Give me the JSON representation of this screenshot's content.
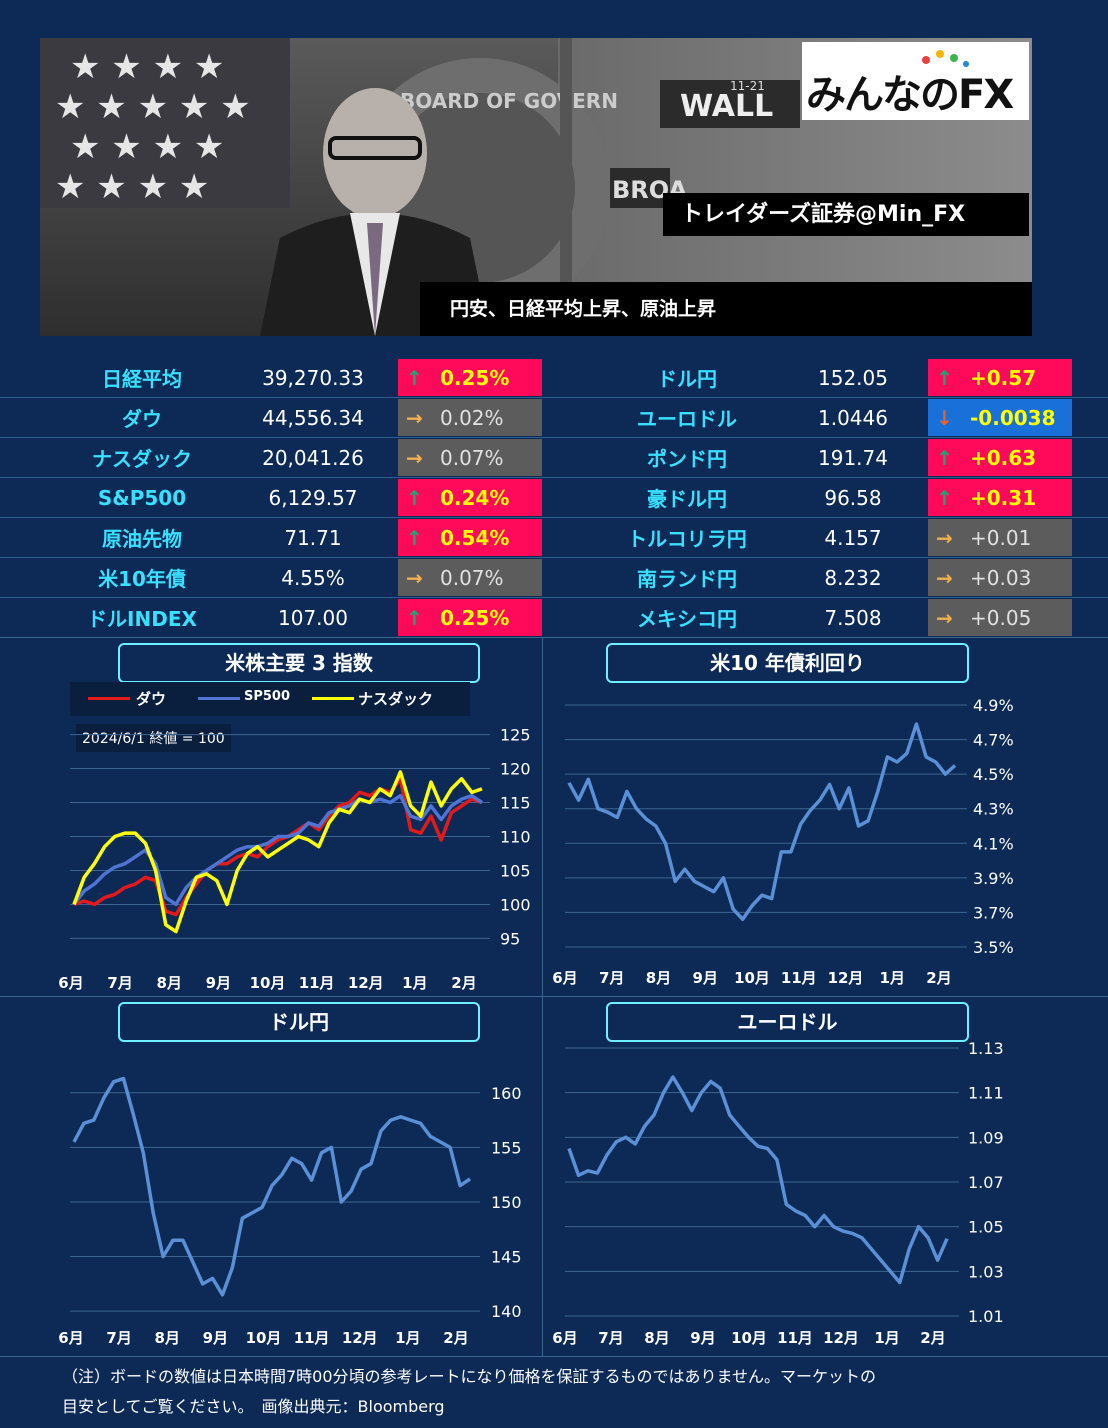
{
  "header": {
    "logo_text": "みんなのFX",
    "account_label": "トレイダーズ証券@Min_FX",
    "headline": "円安、日経平均上昇、原油上昇",
    "photo_sign1": "WALL",
    "photo_sign2": "BROA",
    "photo_sign_small": "11-21",
    "photo_seal_text": "BOARD OF GOVERN"
  },
  "board": {
    "left": [
      {
        "name": "日経平均",
        "value": "39,270.33",
        "change": "0.25%",
        "dir": "up"
      },
      {
        "name": "ダウ",
        "value": "44,556.34",
        "change": "0.02%",
        "dir": "flat"
      },
      {
        "name": "ナスダック",
        "value": "20,041.26",
        "change": "0.07%",
        "dir": "flat"
      },
      {
        "name": "S&P500",
        "value": "6,129.57",
        "change": "0.24%",
        "dir": "up"
      },
      {
        "name": "原油先物",
        "value": "71.71",
        "change": "0.54%",
        "dir": "up"
      },
      {
        "name": "米10年債",
        "value": "4.55%",
        "change": "0.07%",
        "dir": "flat"
      },
      {
        "name": "ドルINDEX",
        "value": "107.00",
        "change": "0.25%",
        "dir": "up"
      }
    ],
    "right": [
      {
        "name": "ドル円",
        "value": "152.05",
        "change": "+0.57",
        "dir": "up"
      },
      {
        "name": "ユーロドル",
        "value": "1.0446",
        "change": "-0.0038",
        "dir": "down"
      },
      {
        "name": "ポンド円",
        "value": "191.74",
        "change": "+0.63",
        "dir": "up"
      },
      {
        "name": "豪ドル円",
        "value": "96.58",
        "change": "+0.31",
        "dir": "up"
      },
      {
        "name": "トルコリラ円",
        "value": "4.157",
        "change": "+0.01",
        "dir": "flat"
      },
      {
        "name": "南ランド円",
        "value": "8.232",
        "change": "+0.03",
        "dir": "flat"
      },
      {
        "name": "メキシコ円",
        "value": "7.508",
        "change": "+0.05",
        "dir": "flat"
      }
    ]
  },
  "colors": {
    "up_bg": "#ff0a5a",
    "flat_bg": "#5c5c5c",
    "down_bg": "#1870d8",
    "line": "#5b8fd6",
    "dow": "#e31a1c",
    "sp500": "#4f74d4",
    "nasdaq": "#ffff00",
    "bg": "#0c2a55"
  },
  "arrows": {
    "up": "🡡",
    "flat": "🡢",
    "down": "🡣"
  },
  "chart_data": [
    {
      "type": "line",
      "title": "米株主要 3 指数",
      "note": "2024/6/1 終値 = 100",
      "x_ticks": [
        "6月",
        "7月",
        "8月",
        "9月",
        "10月",
        "11月",
        "12月",
        "1月",
        "2月"
      ],
      "y_ticks": [
        95,
        100,
        105,
        110,
        115,
        120,
        125
      ],
      "ylim": [
        93,
        127
      ],
      "legend_position": "top",
      "series": [
        {
          "name": "ダウ",
          "color": "#e31a1c",
          "values": [
            100,
            100.5,
            100,
            101,
            101.5,
            102.5,
            103,
            104,
            103.5,
            99,
            98.5,
            101,
            103,
            105,
            106,
            106,
            107,
            107.5,
            107,
            108.5,
            109.5,
            110,
            111,
            112,
            111,
            113,
            114.5,
            115,
            116.5,
            116,
            117,
            116.5,
            118.5,
            111,
            110.5,
            113,
            109.5,
            113.5,
            114.5,
            115.5,
            115
          ]
        },
        {
          "name": "SP500",
          "color": "#4f74d4",
          "values": [
            100,
            102,
            103,
            104.5,
            105.5,
            106,
            107,
            108,
            106,
            101,
            100,
            102.5,
            104,
            105,
            106,
            107,
            108,
            108.5,
            108.5,
            109,
            110,
            110,
            110.5,
            112,
            111.5,
            113.5,
            114,
            114.5,
            115.5,
            115,
            115.5,
            115,
            116,
            113,
            112.5,
            114.5,
            112.5,
            114.5,
            115.5,
            116,
            115
          ]
        },
        {
          "name": "ナスダック",
          "color": "#ffff00",
          "values": [
            100,
            104,
            106,
            108.5,
            110,
            110.5,
            110.5,
            109,
            105,
            97,
            96,
            100.5,
            104,
            104.5,
            103.5,
            100,
            105,
            107.5,
            108.5,
            107,
            108,
            109,
            110,
            109.5,
            108.5,
            112,
            114,
            113.5,
            115.5,
            115,
            117,
            116,
            119.5,
            114.5,
            113,
            118,
            114.5,
            117,
            118.5,
            116.5,
            117
          ]
        }
      ]
    },
    {
      "type": "line",
      "title": "米10 年債利回り",
      "x_ticks": [
        "6月",
        "7月",
        "8月",
        "9月",
        "10月",
        "11月",
        "12月",
        "1月",
        "2月"
      ],
      "y_ticks": [
        "4.9%",
        "4.7%",
        "4.5%",
        "4.3%",
        "4.1%",
        "3.9%",
        "3.7%",
        "3.5%"
      ],
      "ylim": [
        3.5,
        4.9
      ],
      "series": [
        {
          "name": "",
          "color": "#5b8fd6",
          "values": [
            4.45,
            4.35,
            4.47,
            4.3,
            4.28,
            4.25,
            4.4,
            4.3,
            4.24,
            4.2,
            4.1,
            3.88,
            3.95,
            3.88,
            3.85,
            3.82,
            3.9,
            3.72,
            3.66,
            3.74,
            3.8,
            3.78,
            4.05,
            4.05,
            4.21,
            4.29,
            4.35,
            4.44,
            4.3,
            4.42,
            4.2,
            4.23,
            4.4,
            4.6,
            4.57,
            4.62,
            4.79,
            4.6,
            4.57,
            4.5,
            4.55
          ]
        }
      ]
    },
    {
      "type": "line",
      "title": "ドル円",
      "x_ticks": [
        "6月",
        "7月",
        "8月",
        "9月",
        "10月",
        "11月",
        "12月",
        "1月",
        "2月"
      ],
      "y_ticks": [
        160,
        155,
        150,
        145,
        140
      ],
      "ylim": [
        138,
        163
      ],
      "series": [
        {
          "name": "",
          "color": "#5b8fd6",
          "values": [
            155.5,
            157.2,
            157.5,
            159.5,
            161,
            161.3,
            158,
            154.5,
            149,
            145,
            146.5,
            146.5,
            144.5,
            142.5,
            143,
            141.5,
            144,
            148.5,
            149,
            149.5,
            151.5,
            152.5,
            154,
            153.5,
            152,
            154.5,
            155,
            150,
            151,
            153,
            153.5,
            156.5,
            157.5,
            157.8,
            157.5,
            157.2,
            156,
            155.5,
            155,
            151.5,
            152.1
          ]
        }
      ]
    },
    {
      "type": "line",
      "title": "ユーロドル",
      "x_ticks": [
        "6月",
        "7月",
        "8月",
        "9月",
        "10月",
        "11月",
        "12月",
        "1月",
        "2月"
      ],
      "y_ticks": [
        "1.13",
        "1.11",
        "1.09",
        "1.07",
        "1.05",
        "1.03",
        "1.01"
      ],
      "ylim": [
        1.01,
        1.13
      ],
      "series": [
        {
          "name": "",
          "color": "#5b8fd6",
          "values": [
            1.085,
            1.073,
            1.075,
            1.074,
            1.082,
            1.088,
            1.09,
            1.087,
            1.095,
            1.1,
            1.11,
            1.117,
            1.11,
            1.102,
            1.11,
            1.115,
            1.112,
            1.1,
            1.095,
            1.09,
            1.086,
            1.085,
            1.08,
            1.06,
            1.057,
            1.055,
            1.05,
            1.055,
            1.05,
            1.048,
            1.047,
            1.045,
            1.04,
            1.035,
            1.03,
            1.025,
            1.04,
            1.05,
            1.045,
            1.035,
            1.0446
          ]
        }
      ]
    }
  ],
  "footer": {
    "note_line1": "（注）ボードの数値は日本時間7時00分頃の参考レートになり価格を保証するものではありません。マーケットの",
    "note_line2": "目安としてご覧ください。　画像出典元：Bloomberg"
  }
}
